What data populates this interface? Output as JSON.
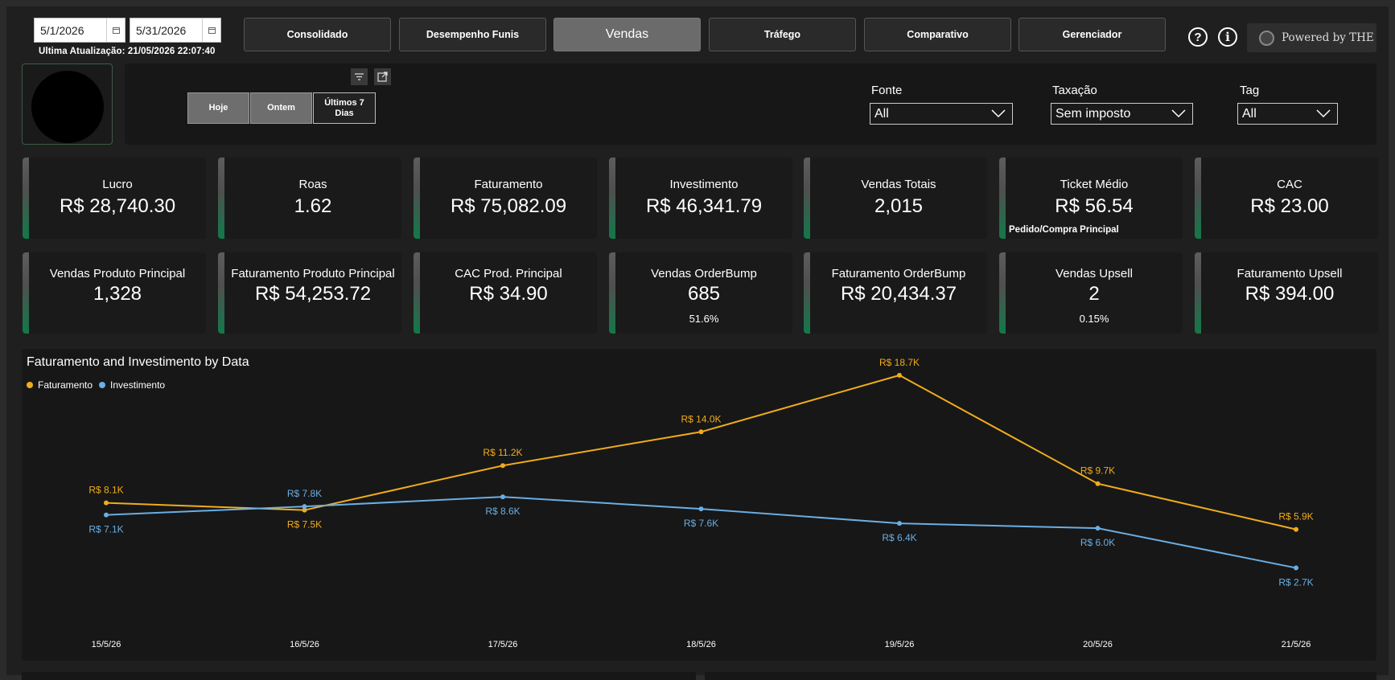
{
  "dates": {
    "start": "5/1/2026",
    "end": "5/31/2026"
  },
  "last_update": "Ultima Atualização: 21/05/2026 22:07:40",
  "nav": {
    "tabs": [
      "Consolidado",
      "Desempenho Funis",
      "Vendas",
      "Tráfego",
      "Comparativo",
      "Gerenciador"
    ],
    "active": "Vendas"
  },
  "header_icons": {
    "help": "?",
    "info": "i"
  },
  "powered_by": "Powered by THE",
  "quick_filters": {
    "today": "Hoje",
    "yesterday": "Ontem",
    "last7_line1": "Últimos 7",
    "last7_line2": "Dias"
  },
  "filters": [
    {
      "label": "Fonte",
      "value": "All"
    },
    {
      "label": "Taxação",
      "value": "Sem imposto"
    },
    {
      "label": "Tag",
      "value": "All"
    }
  ],
  "kpis_row1": [
    {
      "title": "Lucro",
      "value": "R$ 28,740.30"
    },
    {
      "title": "Roas",
      "value": "1.62"
    },
    {
      "title": "Faturamento",
      "value": "R$ 75,082.09"
    },
    {
      "title": "Investimento",
      "value": "R$ 46,341.79"
    },
    {
      "title": "Vendas Totais",
      "value": "2,015"
    },
    {
      "title": "Ticket Médio",
      "value": "R$ 56.54",
      "note": "Pedido/Compra Principal"
    },
    {
      "title": "CAC",
      "value": "R$ 23.00"
    }
  ],
  "kpis_row2": [
    {
      "title": "Vendas Produto Principal",
      "value": "1,328"
    },
    {
      "title": "Faturamento Produto Principal",
      "value": "R$ 54,253.72"
    },
    {
      "title": "CAC Prod. Principal",
      "value": "R$ 34.90"
    },
    {
      "title": "Vendas OrderBump",
      "value": "685",
      "sub": "51.6%"
    },
    {
      "title": "Faturamento OrderBump",
      "value": "R$ 20,434.37"
    },
    {
      "title": "Vendas Upsell",
      "value": "2",
      "sub": "0.15%"
    },
    {
      "title": "Faturamento Upsell",
      "value": "R$ 394.00"
    }
  ],
  "colors": {
    "faturamento": "#f0ac1c",
    "investimento": "#6aaee4",
    "accent_green": "#12794a"
  },
  "chart_data": {
    "type": "line",
    "title": "Faturamento and Investimento by Data",
    "x": [
      "15/5/26",
      "16/5/26",
      "17/5/26",
      "18/5/26",
      "19/5/26",
      "20/5/26",
      "21/5/26"
    ],
    "series": [
      {
        "name": "Faturamento",
        "values": [
          8.1,
          7.5,
          11.2,
          14.0,
          18.7,
          9.7,
          5.9
        ],
        "labels": [
          "R$ 8.1K",
          "R$ 7.5K",
          "R$ 11.2K",
          "R$ 14.0K",
          "R$ 18.7K",
          "R$ 9.7K",
          "R$ 5.9K"
        ]
      },
      {
        "name": "Investimento",
        "values": [
          7.1,
          7.8,
          8.6,
          7.6,
          6.4,
          6.0,
          2.7
        ],
        "labels": [
          "R$ 7.1K",
          "R$ 7.8K",
          "R$ 8.6K",
          "R$ 7.6K",
          "R$ 6.4K",
          "R$ 6.0K",
          "R$ 2.7K"
        ]
      }
    ],
    "legend": "top-left",
    "grid": false
  }
}
